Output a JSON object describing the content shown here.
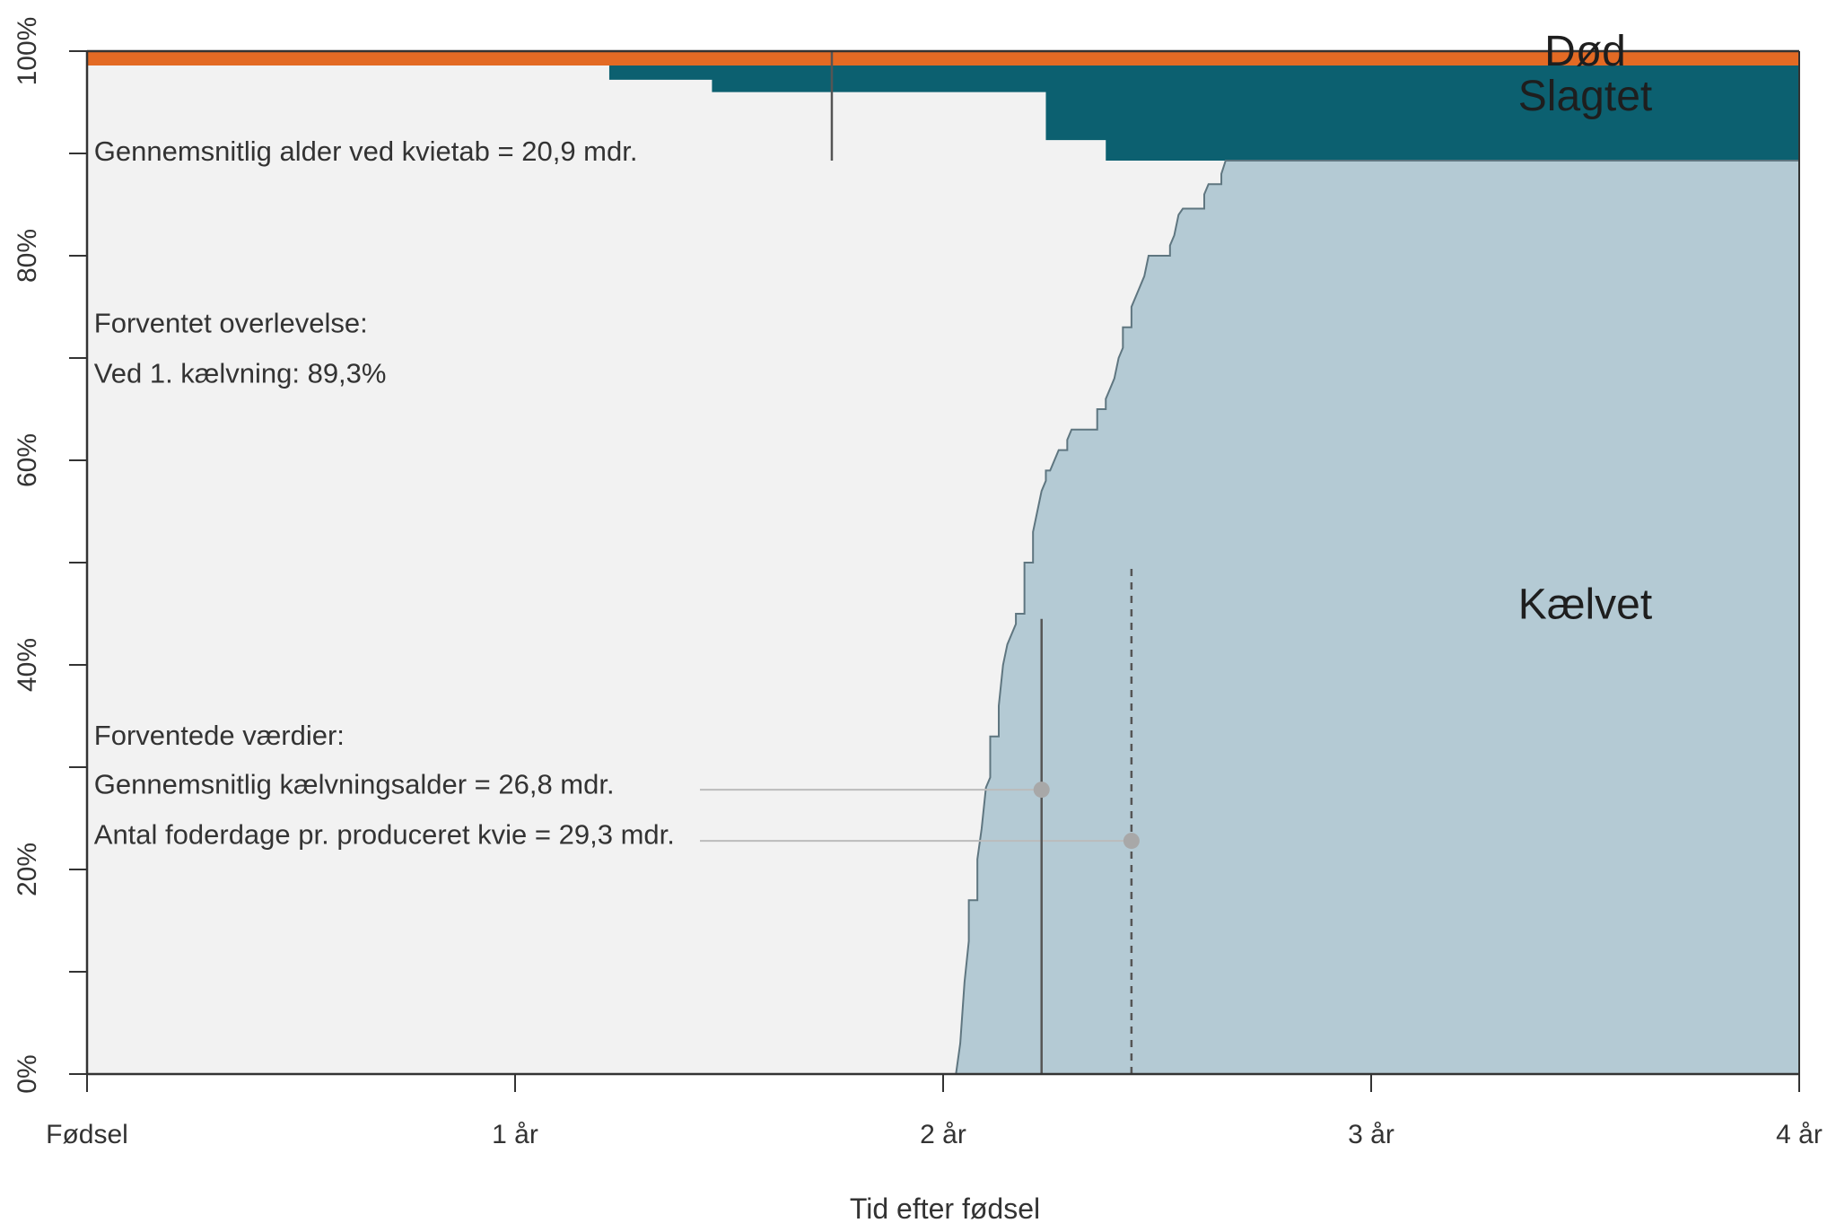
{
  "chart_data": {
    "type": "area",
    "title": "",
    "xlabel": "Tid efter fødsel",
    "ylabel": "",
    "xlim": [
      0,
      4
    ],
    "ylim": [
      0,
      100
    ],
    "x_ticks": [
      {
        "value": 0,
        "label": "Fødsel"
      },
      {
        "value": 1,
        "label": "1 år"
      },
      {
        "value": 2,
        "label": "2 år"
      },
      {
        "value": 3,
        "label": "3 år"
      },
      {
        "value": 4,
        "label": "4 år"
      }
    ],
    "y_ticks": [
      {
        "value": 0,
        "label": "0%"
      },
      {
        "value": 20,
        "label": "20%"
      },
      {
        "value": 40,
        "label": "40%"
      },
      {
        "value": 60,
        "label": "60%"
      },
      {
        "value": 80,
        "label": "80%"
      },
      {
        "value": 100,
        "label": "100%"
      }
    ],
    "y_minor_ticks": [
      10,
      30,
      50,
      70,
      90
    ],
    "grid": false,
    "colors": {
      "background": "#f2f2f2",
      "kaelvet": "#b4cad4",
      "slagtet": "#0c6070",
      "doed": "#e36a24",
      "axis": "#333333",
      "ref_line": "#555555",
      "guide": "#bbbbbb",
      "marker": "#a8a8a8"
    },
    "region_labels": {
      "doed": "Død",
      "slagtet": "Slagtet",
      "kaelvet": "Kælvet"
    },
    "series": [
      {
        "name": "Død",
        "values": [
          [
            0,
            98.6
          ],
          [
            1.22,
            98.6
          ],
          [
            4,
            98.6
          ]
        ]
      },
      {
        "name": "Slagtet",
        "values": [
          [
            0,
            98.6
          ],
          [
            1.22,
            98.6
          ],
          [
            1.22,
            97.2
          ],
          [
            1.46,
            97.2
          ],
          [
            1.46,
            96.0
          ],
          [
            2.24,
            96.0
          ],
          [
            2.24,
            91.3
          ],
          [
            2.38,
            91.3
          ],
          [
            2.38,
            89.3
          ],
          [
            4,
            89.3
          ]
        ]
      },
      {
        "name": "Kælvet",
        "values": [
          [
            2.03,
            0
          ],
          [
            2.04,
            3
          ],
          [
            2.05,
            9
          ],
          [
            2.06,
            13
          ],
          [
            2.06,
            17
          ],
          [
            2.08,
            17
          ],
          [
            2.08,
            21
          ],
          [
            2.09,
            24
          ],
          [
            2.1,
            28
          ],
          [
            2.11,
            29
          ],
          [
            2.11,
            33
          ],
          [
            2.13,
            33
          ],
          [
            2.13,
            36
          ],
          [
            2.14,
            40
          ],
          [
            2.15,
            42
          ],
          [
            2.16,
            43
          ],
          [
            2.17,
            44
          ],
          [
            2.17,
            45
          ],
          [
            2.19,
            45
          ],
          [
            2.19,
            50
          ],
          [
            2.21,
            50
          ],
          [
            2.21,
            53
          ],
          [
            2.22,
            55
          ],
          [
            2.23,
            57
          ],
          [
            2.24,
            58
          ],
          [
            2.24,
            59
          ],
          [
            2.25,
            59
          ],
          [
            2.26,
            60
          ],
          [
            2.27,
            61
          ],
          [
            2.29,
            61
          ],
          [
            2.29,
            62
          ],
          [
            2.3,
            63
          ],
          [
            2.36,
            63
          ],
          [
            2.36,
            65
          ],
          [
            2.38,
            65
          ],
          [
            2.38,
            66
          ],
          [
            2.39,
            67
          ],
          [
            2.4,
            68
          ],
          [
            2.41,
            70
          ],
          [
            2.42,
            71
          ],
          [
            2.42,
            73
          ],
          [
            2.44,
            73
          ],
          [
            2.44,
            75
          ],
          [
            2.45,
            76
          ],
          [
            2.46,
            77
          ],
          [
            2.47,
            78
          ],
          [
            2.48,
            80
          ],
          [
            2.53,
            80
          ],
          [
            2.53,
            81
          ],
          [
            2.54,
            82
          ],
          [
            2.55,
            84
          ],
          [
            2.56,
            84.6
          ],
          [
            2.61,
            84.6
          ],
          [
            2.61,
            86
          ],
          [
            2.62,
            87
          ],
          [
            2.65,
            87
          ],
          [
            2.65,
            88
          ],
          [
            2.66,
            89.3
          ],
          [
            4,
            89.3
          ]
        ]
      }
    ],
    "reference_lines": [
      {
        "x": 1.74,
        "y_from": 89.3,
        "y_to": 100,
        "style": "solid"
      },
      {
        "x": 2.23,
        "y_from": 0,
        "y_to": 44.5,
        "style": "solid"
      },
      {
        "x": 2.44,
        "y_from": 0,
        "y_to": 50,
        "style": "dashed"
      }
    ],
    "markers": [
      {
        "x": 2.23,
        "y": 27.8
      },
      {
        "x": 2.44,
        "y": 22.8
      }
    ],
    "annotations": [
      {
        "id": "avg_age_heifer_loss",
        "text": "Gennemsnitlig alder ved kvietab = 20,9 mdr.",
        "x": 0.01,
        "y": 89.3
      },
      {
        "id": "expected_survival_title",
        "text": "Forventet overlevelse:",
        "x": 0.01,
        "y": 72.5
      },
      {
        "id": "survival_first_calving",
        "text": "Ved 1. kælvning: 89,3%",
        "x": 0.01,
        "y": 67.6
      },
      {
        "id": "expected_values_title",
        "text": "Forventede værdier:",
        "x": 0.01,
        "y": 32.2
      },
      {
        "id": "avg_calving_age",
        "text": "Gennemsnitlig kælvningsalder = 26,8 mdr.",
        "x": 0.01,
        "y": 27.4,
        "guide_to": {
          "x": 2.23,
          "y": 27.8
        }
      },
      {
        "id": "feed_days_per_heifer",
        "text": "Antal foderdage pr. produceret kvie = 29,3 mdr.",
        "x": 0.01,
        "y": 22.5,
        "guide_to": {
          "x": 2.44,
          "y": 22.8
        }
      }
    ],
    "region_label_positions": {
      "doed": {
        "x": 3.5,
        "y": 98.6
      },
      "slagtet": {
        "x": 3.5,
        "y": 94.2
      },
      "kaelvet": {
        "x": 3.5,
        "y": 44.5
      }
    }
  }
}
